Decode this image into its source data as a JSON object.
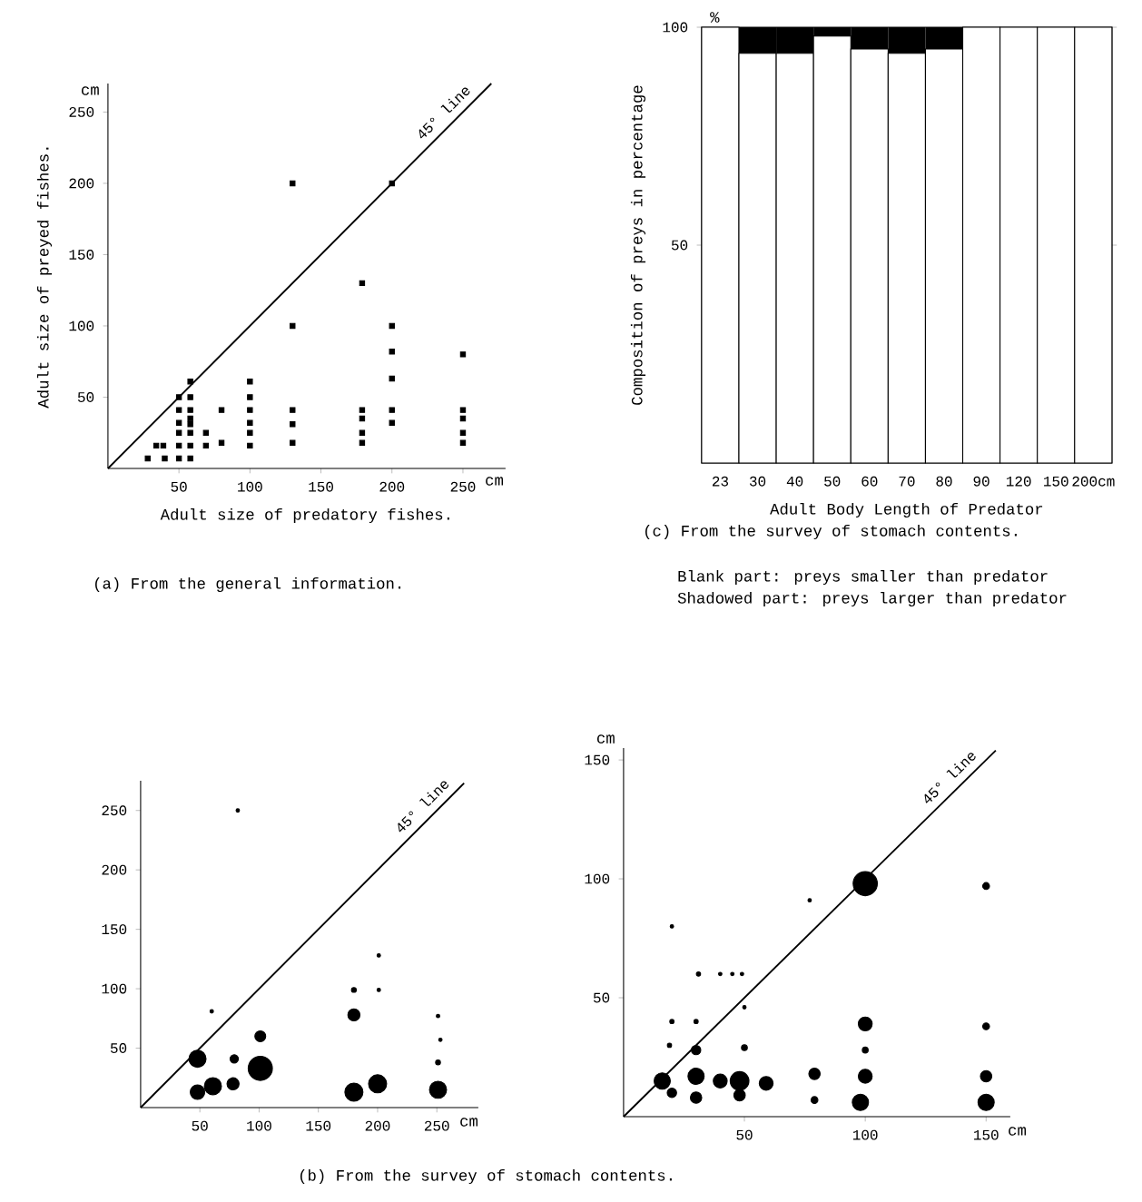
{
  "chart_data": [
    {
      "type": "scatter",
      "xlabel": "Adult size of predatory fishes.",
      "ylabel": "Adult size of preyed fishes.",
      "annotations": [
        "cm",
        "(a) From the general information.",
        "cm"
      ],
      "xlim": [
        0,
        280
      ],
      "ylim": [
        0,
        270
      ],
      "xticks": [
        50,
        100,
        150,
        200,
        250
      ],
      "yticks": [
        50,
        100,
        150,
        200,
        250
      ],
      "series": [
        {
          "type": "scatter",
          "marker": "square",
          "color": "#000000",
          "x": [
            28,
            34,
            39,
            40,
            50,
            50,
            50,
            50,
            50,
            50,
            58,
            58,
            58,
            58,
            58,
            58,
            58,
            58,
            69,
            69,
            80,
            80,
            100,
            100,
            100,
            100,
            100,
            100,
            130,
            130,
            130,
            130,
            130,
            179,
            179,
            179,
            179,
            179,
            200,
            200,
            200,
            200,
            200,
            200,
            250,
            250,
            250,
            250,
            250
          ],
          "values": [
            7,
            16,
            16,
            7,
            50,
            41,
            32,
            25,
            16,
            7,
            61,
            50,
            41,
            35,
            31,
            25,
            16,
            7,
            25,
            16,
            41,
            18,
            61,
            50,
            41,
            32,
            25,
            16,
            200,
            100,
            41,
            31,
            18,
            130,
            41,
            35,
            25,
            18,
            200,
            100,
            82,
            63,
            41,
            32,
            80,
            41,
            35,
            25,
            18
          ]
        },
        {
          "type": "line",
          "name": "45° line",
          "color": "#000000",
          "x": [
            0,
            270
          ],
          "values": [
            0,
            270
          ]
        }
      ]
    },
    {
      "type": "bar",
      "stacked": true,
      "xlabel": "Adult Body Length of Predator",
      "ylabel": "Composition of preys in percentage",
      "annotations": [
        "%",
        "(c) From the survey of stomach contents.",
        "Blank part: preys smaller than predator",
        "Shadowed part: preys larger than predator"
      ],
      "categories": [
        "23",
        "30",
        "40",
        "50",
        "60",
        "70",
        "80",
        "90",
        "120",
        "150",
        "200cm"
      ],
      "ylim": [
        0,
        100
      ],
      "yticks": [
        50,
        100
      ],
      "series": [
        {
          "color": "#ffffff",
          "values": [
            100,
            94,
            94,
            98,
            95,
            94,
            95,
            100,
            100,
            100,
            100
          ]
        },
        {
          "color": "#000000",
          "values": [
            0,
            6,
            6,
            2,
            5,
            6,
            5,
            0,
            0,
            0,
            0
          ]
        }
      ]
    },
    {
      "type": "bubble",
      "annotations": [
        "(b) From the survey of stomach contents.",
        "cm"
      ],
      "xlim": [
        0,
        285
      ],
      "ylim": [
        0,
        275
      ],
      "xticks": [
        50,
        100,
        150,
        200,
        250
      ],
      "yticks": [
        50,
        100,
        150,
        200,
        250
      ],
      "series": [
        {
          "type": "bubble",
          "color": "#000000",
          "x": [
            48,
            48,
            61,
            78,
            79,
            101,
            101,
            180,
            180,
            200,
            251,
            82,
            180,
            251,
            253,
            60,
            201,
            201,
            251
          ],
          "values": [
            41,
            13,
            18,
            20,
            41,
            33,
            60,
            78,
            13,
            20,
            15,
            250,
            99,
            38,
            57,
            81,
            99,
            128,
            77
          ],
          "sizes": [
            0.5,
            0.36,
            0.5,
            0.25,
            0.12,
            1,
            0.2,
            0.25,
            0.56,
            0.56,
            0.5,
            0.02,
            0.04,
            0.04,
            0.02,
            0.02,
            0.02,
            0.02,
            0.02
          ]
        },
        {
          "type": "line",
          "name": "45° line",
          "color": "#000000",
          "x": [
            0,
            273
          ],
          "values": [
            0,
            273
          ]
        }
      ]
    },
    {
      "type": "bubble",
      "annotations": [
        "cm",
        "cm"
      ],
      "xlim": [
        0,
        160
      ],
      "ylim": [
        0,
        155
      ],
      "xticks": [
        50,
        100,
        150
      ],
      "yticks": [
        50,
        100,
        150
      ],
      "series": [
        {
          "type": "bubble",
          "color": "#000000",
          "x": [
            16,
            20,
            30,
            30,
            30,
            40,
            48,
            48,
            50,
            59,
            79,
            79,
            100,
            100,
            100,
            98,
            100,
            150,
            150,
            150,
            150,
            20,
            30,
            31,
            19,
            40,
            45,
            49,
            50,
            20,
            77
          ],
          "values": [
            15,
            10,
            17,
            8,
            28,
            15,
            15,
            9,
            29,
            14,
            18,
            7,
            98,
            39,
            17,
            6,
            28,
            97,
            38,
            17,
            6,
            40,
            40,
            60,
            30,
            60,
            60,
            60,
            46,
            80,
            91
          ],
          "sizes": [
            0.45,
            0.15,
            0.45,
            0.22,
            0.15,
            0.33,
            0.6,
            0.22,
            0.06,
            0.33,
            0.22,
            0.08,
            1,
            0.33,
            0.33,
            0.45,
            0.06,
            0.08,
            0.08,
            0.22,
            0.45,
            0.03,
            0.03,
            0.03,
            0.03,
            0.02,
            0.02,
            0.02,
            0.02,
            0.02,
            0.02
          ]
        },
        {
          "type": "line",
          "name": "45° line",
          "color": "#000000",
          "x": [
            0,
            154
          ],
          "values": [
            0,
            154
          ]
        }
      ]
    }
  ]
}
